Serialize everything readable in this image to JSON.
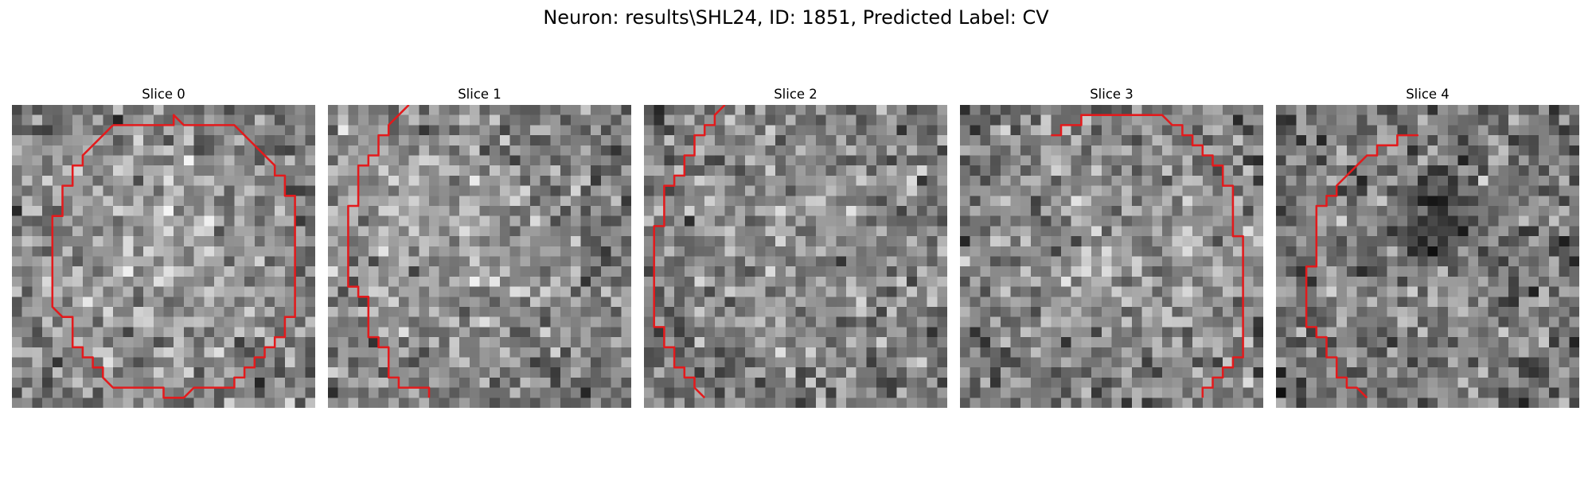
{
  "suptitle": "Neuron: results\\SHL24, ID: 1851, Predicted Label: CV",
  "grid_size": 30,
  "contour_color": "#e31a1c",
  "slices": [
    {
      "title": "Slice 0",
      "seed": 11,
      "bright": {
        "cx": 15,
        "cy": 15,
        "r": 11,
        "gain": 60
      },
      "dark": [],
      "contour": [
        [
          10,
          2
        ],
        [
          16,
          2
        ],
        [
          16,
          1
        ],
        [
          17,
          2
        ],
        [
          22,
          2
        ],
        [
          23,
          3
        ],
        [
          26,
          6
        ],
        [
          26,
          7
        ],
        [
          27,
          7
        ],
        [
          27,
          9
        ],
        [
          28,
          9
        ],
        [
          28,
          10
        ],
        [
          28,
          11
        ],
        [
          28,
          12
        ],
        [
          28,
          14
        ],
        [
          28,
          16
        ],
        [
          28,
          18
        ],
        [
          28,
          20
        ],
        [
          28,
          21
        ],
        [
          27,
          21
        ],
        [
          27,
          23
        ],
        [
          26,
          23
        ],
        [
          26,
          24
        ],
        [
          25,
          24
        ],
        [
          25,
          25
        ],
        [
          24,
          25
        ],
        [
          24,
          26
        ],
        [
          23,
          26
        ],
        [
          23,
          27
        ],
        [
          22,
          27
        ],
        [
          22,
          28
        ],
        [
          18,
          28
        ],
        [
          17,
          29
        ],
        [
          15,
          29
        ],
        [
          15,
          28
        ],
        [
          10,
          28
        ],
        [
          9,
          27
        ],
        [
          9,
          26
        ],
        [
          8,
          26
        ],
        [
          8,
          25
        ],
        [
          7,
          25
        ],
        [
          7,
          24
        ],
        [
          6,
          24
        ],
        [
          6,
          21
        ],
        [
          5,
          21
        ],
        [
          4,
          20
        ],
        [
          4,
          16
        ],
        [
          4,
          14
        ],
        [
          4,
          11
        ],
        [
          5,
          11
        ],
        [
          5,
          10
        ],
        [
          5,
          8
        ],
        [
          6,
          8
        ],
        [
          6,
          6
        ],
        [
          7,
          6
        ],
        [
          7,
          5
        ],
        [
          10,
          2
        ]
      ]
    },
    {
      "title": "Slice 1",
      "seed": 23,
      "bright": {
        "cx": 9,
        "cy": 13,
        "r": 15,
        "gain": 50
      },
      "dark": [],
      "contour": [
        [
          8,
          0
        ],
        [
          7,
          1
        ],
        [
          6,
          2
        ],
        [
          6,
          3
        ],
        [
          5,
          3
        ],
        [
          5,
          4
        ],
        [
          5,
          5
        ],
        [
          4,
          5
        ],
        [
          4,
          6
        ],
        [
          3,
          6
        ],
        [
          3,
          8
        ],
        [
          3,
          10
        ],
        [
          2,
          10
        ],
        [
          2,
          11
        ],
        [
          2,
          13
        ],
        [
          2,
          15
        ],
        [
          2,
          17
        ],
        [
          2,
          18
        ],
        [
          3,
          18
        ],
        [
          3,
          19
        ],
        [
          4,
          19
        ],
        [
          4,
          21
        ],
        [
          4,
          22
        ],
        [
          4,
          23
        ],
        [
          5,
          23
        ],
        [
          5,
          24
        ],
        [
          6,
          24
        ],
        [
          6,
          27
        ],
        [
          7,
          27
        ],
        [
          7,
          28
        ],
        [
          9,
          28
        ],
        [
          10,
          28
        ],
        [
          10,
          29
        ]
      ]
    },
    {
      "title": "Slice 2",
      "seed": 37,
      "bright": {
        "cx": 15,
        "cy": 14,
        "r": 12,
        "gain": 45
      },
      "dark": [],
      "contour": [
        [
          8,
          0
        ],
        [
          7,
          1
        ],
        [
          7,
          2
        ],
        [
          6,
          2
        ],
        [
          6,
          3
        ],
        [
          5,
          3
        ],
        [
          5,
          5
        ],
        [
          4,
          5
        ],
        [
          4,
          6
        ],
        [
          4,
          7
        ],
        [
          3,
          7
        ],
        [
          3,
          8
        ],
        [
          2,
          8
        ],
        [
          2,
          10
        ],
        [
          2,
          12
        ],
        [
          1,
          12
        ],
        [
          1,
          14
        ],
        [
          1,
          16
        ],
        [
          1,
          18
        ],
        [
          1,
          21
        ],
        [
          1,
          22
        ],
        [
          2,
          22
        ],
        [
          2,
          24
        ],
        [
          3,
          24
        ],
        [
          3,
          26
        ],
        [
          4,
          26
        ],
        [
          4,
          27
        ],
        [
          5,
          27
        ],
        [
          5,
          28
        ],
        [
          6,
          29
        ]
      ]
    },
    {
      "title": "Slice 3",
      "seed": 53,
      "bright": {
        "cx": 15,
        "cy": 15,
        "r": 13,
        "gain": 50
      },
      "dark": [],
      "contour": [
        [
          9,
          3
        ],
        [
          10,
          3
        ],
        [
          10,
          2
        ],
        [
          11,
          2
        ],
        [
          12,
          2
        ],
        [
          12,
          1
        ],
        [
          14,
          1
        ],
        [
          16,
          1
        ],
        [
          18,
          1
        ],
        [
          20,
          1
        ],
        [
          21,
          2
        ],
        [
          22,
          2
        ],
        [
          22,
          3
        ],
        [
          23,
          3
        ],
        [
          23,
          4
        ],
        [
          24,
          4
        ],
        [
          24,
          5
        ],
        [
          25,
          5
        ],
        [
          25,
          6
        ],
        [
          26,
          6
        ],
        [
          26,
          8
        ],
        [
          27,
          8
        ],
        [
          27,
          10
        ],
        [
          27,
          13
        ],
        [
          28,
          13
        ],
        [
          28,
          15
        ],
        [
          28,
          18
        ],
        [
          28,
          21
        ],
        [
          28,
          23
        ],
        [
          28,
          25
        ],
        [
          27,
          25
        ],
        [
          27,
          26
        ],
        [
          26,
          26
        ],
        [
          26,
          27
        ],
        [
          25,
          27
        ],
        [
          25,
          28
        ],
        [
          24,
          28
        ],
        [
          24,
          29
        ]
      ]
    },
    {
      "title": "Slice 4",
      "seed": 71,
      "bright": {
        "cx": 15,
        "cy": 14,
        "r": 11,
        "gain": 30
      },
      "dark": [
        [
          16,
          10,
          2.4,
          -95
        ],
        [
          15,
          14,
          1.8,
          -55
        ]
      ],
      "contour": [
        [
          10,
          4
        ],
        [
          12,
          4
        ],
        [
          12,
          3
        ],
        [
          14,
          3
        ],
        [
          12,
          3
        ],
        [
          12,
          4
        ],
        [
          10,
          4
        ],
        [
          10,
          5
        ],
        [
          9,
          5
        ],
        [
          8,
          6
        ],
        [
          7,
          7
        ],
        [
          6,
          8
        ],
        [
          6,
          9
        ],
        [
          5,
          9
        ],
        [
          5,
          10
        ],
        [
          4,
          10
        ],
        [
          4,
          14
        ],
        [
          4,
          16
        ],
        [
          3,
          16
        ],
        [
          3,
          18
        ],
        [
          3,
          20
        ],
        [
          3,
          22
        ],
        [
          4,
          22
        ],
        [
          4,
          23
        ],
        [
          5,
          23
        ],
        [
          5,
          25
        ],
        [
          6,
          25
        ],
        [
          6,
          27
        ],
        [
          7,
          27
        ],
        [
          7,
          28
        ],
        [
          8,
          28
        ],
        [
          9,
          29
        ]
      ]
    }
  ]
}
